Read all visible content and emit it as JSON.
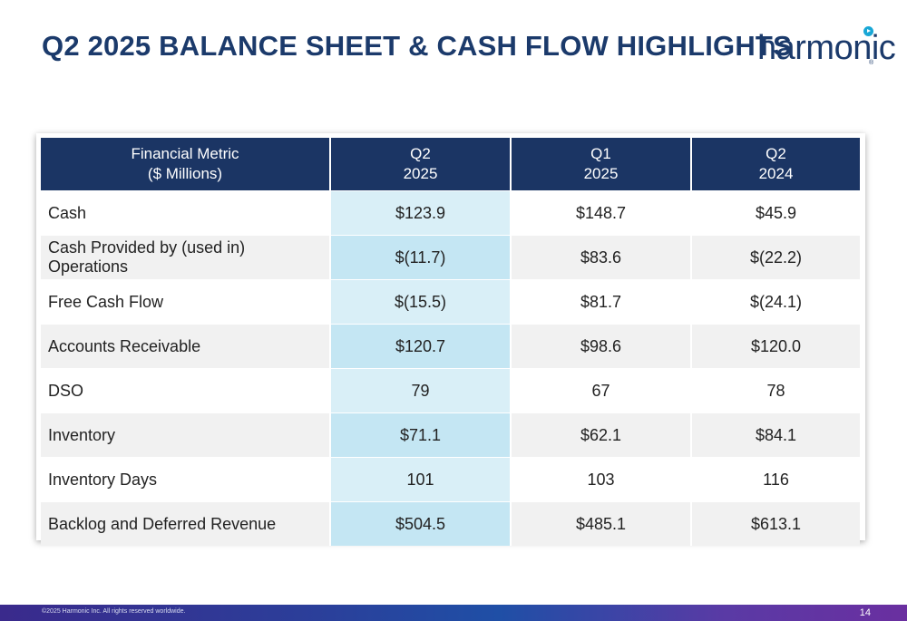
{
  "title": "Q2 2025 BALANCE SHEET & CASH FLOW HIGHLIGHTS",
  "logo": {
    "text": "harmonic",
    "reg": "®"
  },
  "table": {
    "headers": [
      {
        "line1": "Financial Metric",
        "line2": "($ Millions)"
      },
      {
        "line1": "Q2",
        "line2": "2025"
      },
      {
        "line1": "Q1",
        "line2": "2025"
      },
      {
        "line1": "Q2",
        "line2": "2024"
      }
    ],
    "rows": [
      {
        "metric": "Cash",
        "q2_2025": "$123.9",
        "q1_2025": "$148.7",
        "q2_2024": "$45.9"
      },
      {
        "metric": "Cash Provided by (used in) Operations",
        "q2_2025": "$(11.7)",
        "q1_2025": "$83.6",
        "q2_2024": "$(22.2)"
      },
      {
        "metric": "Free Cash Flow",
        "q2_2025": "$(15.5)",
        "q1_2025": "$81.7",
        "q2_2024": "$(24.1)"
      },
      {
        "metric": "Accounts Receivable",
        "q2_2025": "$120.7",
        "q1_2025": "$98.6",
        "q2_2024": "$120.0"
      },
      {
        "metric": "DSO",
        "q2_2025": "79",
        "q1_2025": "67",
        "q2_2024": "78"
      },
      {
        "metric": "Inventory",
        "q2_2025": "$71.1",
        "q1_2025": "$62.1",
        "q2_2024": "$84.1"
      },
      {
        "metric": "Inventory Days",
        "q2_2025": "101",
        "q1_2025": "103",
        "q2_2024": "116"
      },
      {
        "metric": "Backlog and Deferred Revenue",
        "q2_2025": "$504.5",
        "q1_2025": "$485.1",
        "q2_2024": "$613.1"
      }
    ]
  },
  "footer": {
    "copyright": "©2025 Harmonic Inc. All rights reserved worldwide.",
    "page_number": "14"
  },
  "colors": {
    "title": "#1b3a6b",
    "header_bg": "#1b3564",
    "highlight_col": "#d9eff7",
    "highlight_col_alt": "#c4e6f3",
    "row_alt": "#f1f1f1",
    "logo_accent": "#18a7d6"
  }
}
